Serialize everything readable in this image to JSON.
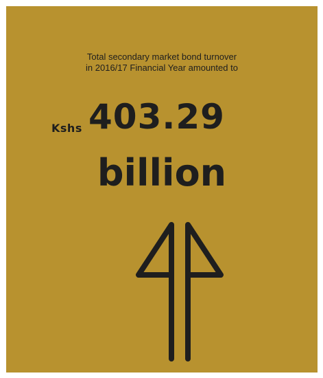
{
  "caption": {
    "line1": "Total secondary market bond turnover",
    "line2": "in 2016/17 Financial Year amounted to"
  },
  "amount": {
    "currency": "Kshs",
    "value": "403.29",
    "unit": "billion"
  },
  "colors": {
    "background": "#b8922f",
    "text": "#1e1e1e"
  },
  "icon": "double-up-arrow-icon"
}
